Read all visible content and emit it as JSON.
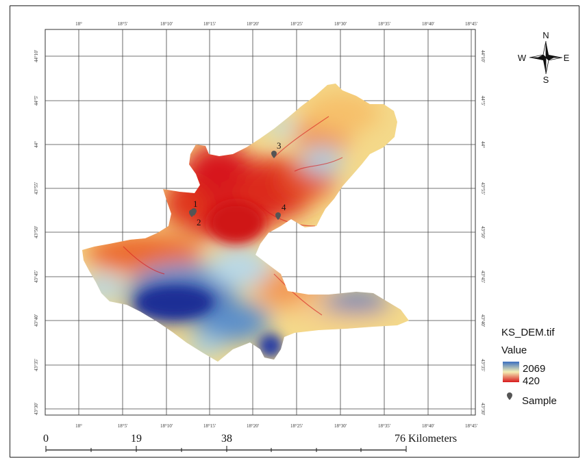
{
  "map": {
    "layer_name": "KS_DEM.tif",
    "value_label": "Value",
    "legend_high": "2069",
    "legend_low": "420",
    "sample_label": "Sample",
    "high_color": "#2b3fa3",
    "mid_color": "#f4e9a8",
    "low_color": "#d7191c",
    "top_ticks": [
      "18°",
      "18°5'",
      "18°10'",
      "18°15'",
      "18°20'",
      "18°25'",
      "18°30'",
      "18°35'",
      "18°40'",
      "18°45'"
    ],
    "bottom_ticks": [
      "18°",
      "18°5'",
      "18°10'",
      "18°15'",
      "18°20'",
      "18°25'",
      "18°30'",
      "18°35'",
      "18°40'",
      "18°45'"
    ],
    "side_ticks": [
      "44°10'",
      "44°5'",
      "44°",
      "43°55'",
      "43°50'",
      "43°45'",
      "43°40'",
      "43°35'",
      "43°30'"
    ],
    "samples": [
      "1",
      "2",
      "3",
      "4"
    ]
  },
  "compass": {
    "n": "N",
    "s": "S",
    "e": "E",
    "w": "W"
  },
  "scalebar": {
    "labels": [
      "0",
      "19",
      "38",
      "76 Kilometers"
    ]
  }
}
